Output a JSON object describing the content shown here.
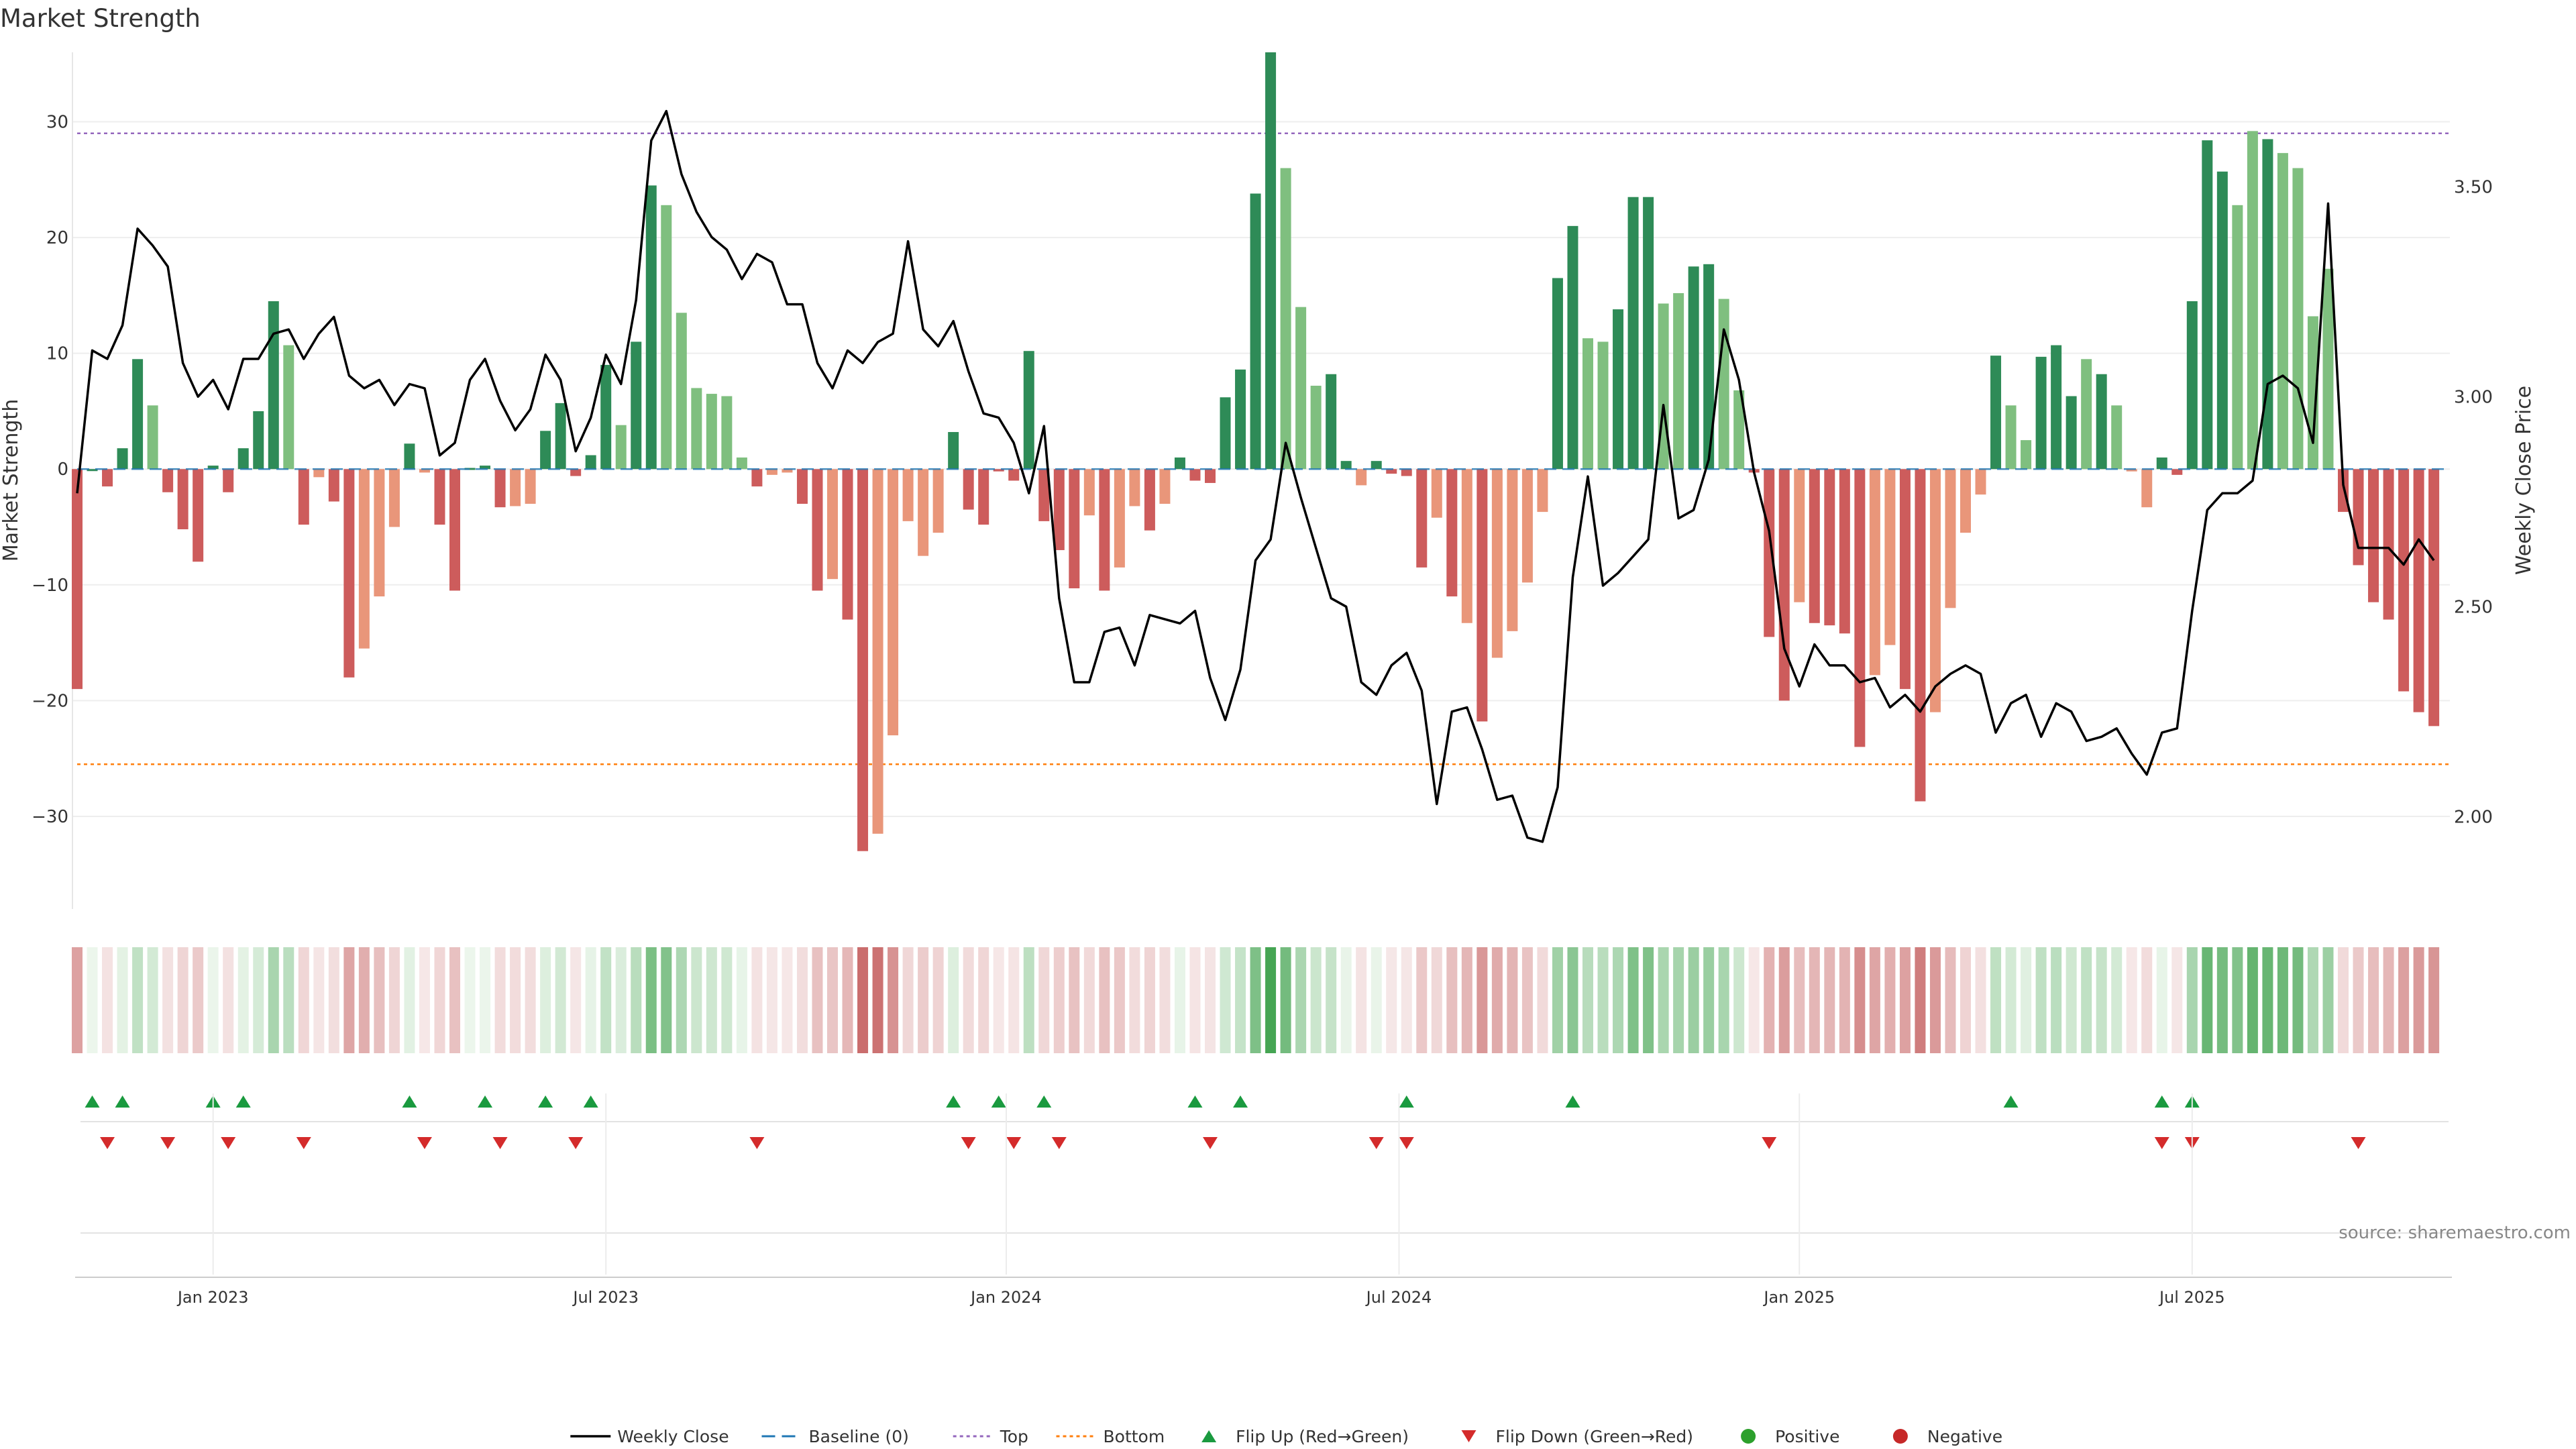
{
  "title": "Market Strength",
  "source_label": "source: sharemaestro.com",
  "colors": {
    "pos_dark": "#2e8b57",
    "pos_light": "#7fbf7f",
    "neg_dark": "#cd5c5c",
    "neg_light": "#e9967a",
    "price_line": "#000000",
    "baseline": "#1f77b4",
    "top": "#9467bd",
    "bottom": "#ff7f0e",
    "flip_up": "#1a9a3f",
    "flip_down": "#d42b2b",
    "positive": "#2ca02c",
    "negative": "#c62828"
  },
  "chart_data": {
    "type": "bar",
    "title": "Market Strength",
    "ylabel_left": "Market Strength",
    "ylabel_right": "Weekly Close Price",
    "ylim_left": [
      -38,
      36
    ],
    "ylim_right": [
      1.78,
      3.82
    ],
    "yticks_left": [
      -30,
      -20,
      -10,
      0,
      10,
      20,
      30
    ],
    "yticks_right": [
      2.0,
      2.5,
      3.0,
      3.5
    ],
    "ytick_labels_left": [
      "−30",
      "−20",
      "−10",
      "0",
      "10",
      "20",
      "30"
    ],
    "ytick_labels_right": [
      "2.00",
      "2.50",
      "3.00",
      "3.50"
    ],
    "top_line": 29,
    "bottom_line": -25.5,
    "x_ticks": [
      {
        "label": "Jan 2023",
        "week": 9
      },
      {
        "label": "Jul 2023",
        "week": 35
      },
      {
        "label": "Jan 2024",
        "week": 61.5
      },
      {
        "label": "Jul 2024",
        "week": 87.5
      },
      {
        "label": "Jan 2025",
        "week": 114
      },
      {
        "label": "Jul 2025",
        "week": 140
      }
    ],
    "series": [
      {
        "name": "Market Strength",
        "values": [
          -19,
          0,
          -1.5,
          1.8,
          9.5,
          5.5,
          -2,
          -5.2,
          -8,
          0.3,
          -2,
          1.8,
          5,
          14.5,
          10.7,
          -4.8,
          -0.7,
          -2.8,
          -18,
          -15.5,
          -11,
          -5,
          2.2,
          -0.3,
          -4.8,
          -10.5,
          0.1,
          0.3,
          -3.3,
          -3.2,
          -3,
          3.3,
          5.7,
          -0.6,
          1.2,
          9,
          3.8,
          11,
          24.5,
          22.8,
          13.5,
          7,
          6.5,
          6.3,
          1,
          -1.5,
          -0.5,
          -0.3,
          -3,
          -10.5,
          -9.5,
          -13,
          -33,
          -31.5,
          -23,
          -4.5,
          -7.5,
          -5.5,
          3.2,
          -3.5,
          -4.8,
          -0.2,
          -1,
          10.2,
          -4.5,
          -7,
          -10.3,
          -4,
          -10.5,
          -8.5,
          -3.2,
          -5.3,
          -3,
          1,
          -1,
          -1.2,
          6.2,
          8.6,
          23.8,
          36,
          26,
          14,
          7.2,
          8.2,
          0.7,
          -1.4,
          0.7,
          -0.4,
          -0.6,
          -8.5,
          -4.2,
          -11,
          -13.3,
          -21.8,
          -16.3,
          -14,
          -9.8,
          -3.7,
          16.5,
          21,
          11.3,
          11,
          13.8,
          23.5,
          23.5,
          14.3,
          15.2,
          17.5,
          17.7,
          14.7,
          6.8,
          -0.3,
          -14.5,
          -20,
          -11.5,
          -13.3,
          -13.5,
          -14.2,
          -24,
          -17.8,
          -15.2,
          -19,
          -28.7,
          -21,
          -12,
          -5.5,
          -2.2,
          9.8,
          5.5,
          2.5,
          9.7,
          10.7,
          6.3,
          9.5,
          8.2,
          5.5,
          -0.2,
          -3.3,
          1,
          -0.5,
          14.5,
          28.4,
          25.7,
          22.8,
          29.2,
          28.5,
          27.3,
          26,
          13.2,
          17.3,
          -3.7,
          -8.3,
          -11.5,
          -13,
          -19.2,
          -21,
          -22.2
        ],
        "shade": [
          "d",
          "d",
          "d",
          "d",
          "d",
          "l",
          "d",
          "d",
          "d",
          "d",
          "d",
          "d",
          "d",
          "d",
          "l",
          "d",
          "l",
          "d",
          "d",
          "l",
          "l",
          "l",
          "d",
          "l",
          "d",
          "d",
          "d",
          "d",
          "d",
          "l",
          "l",
          "d",
          "d",
          "d",
          "d",
          "d",
          "l",
          "d",
          "d",
          "l",
          "l",
          "l",
          "l",
          "l",
          "l",
          "d",
          "l",
          "l",
          "d",
          "d",
          "l",
          "d",
          "d",
          "l",
          "l",
          "l",
          "l",
          "l",
          "d",
          "d",
          "d",
          "d",
          "d",
          "d",
          "d",
          "d",
          "d",
          "l",
          "d",
          "l",
          "l",
          "d",
          "l",
          "d",
          "d",
          "d",
          "d",
          "d",
          "d",
          "d",
          "l",
          "l",
          "l",
          "d",
          "d",
          "l",
          "d",
          "d",
          "d",
          "d",
          "l",
          "d",
          "l",
          "d",
          "l",
          "l",
          "l",
          "l",
          "d",
          "d",
          "l",
          "l",
          "d",
          "d",
          "d",
          "l",
          "l",
          "d",
          "d",
          "l",
          "l",
          "d",
          "d",
          "d",
          "l",
          "d",
          "d",
          "d",
          "d",
          "l",
          "l",
          "d",
          "d",
          "l",
          "l",
          "l",
          "l",
          "d",
          "l",
          "l",
          "d",
          "d",
          "d",
          "l",
          "d",
          "l",
          "l",
          "l",
          "d",
          "d",
          "d",
          "d",
          "d",
          "l",
          "l",
          "d",
          "l",
          "l",
          "l",
          "l",
          "d",
          "d",
          "d",
          "d",
          "d",
          "d",
          "d",
          "d",
          "d"
        ]
      },
      {
        "name": "Weekly Close",
        "axis": "right",
        "values": [
          2.77,
          3.11,
          3.09,
          3.17,
          3.4,
          3.36,
          3.31,
          3.08,
          3.0,
          3.04,
          2.97,
          3.09,
          3.09,
          3.15,
          3.16,
          3.09,
          3.15,
          3.19,
          3.05,
          3.02,
          3.04,
          2.98,
          3.03,
          3.02,
          2.86,
          2.89,
          3.04,
          3.09,
          2.99,
          2.92,
          2.97,
          3.1,
          3.04,
          2.87,
          2.95,
          3.1,
          3.03,
          3.23,
          3.61,
          3.68,
          3.53,
          3.44,
          3.38,
          3.35,
          3.28,
          3.34,
          3.32,
          3.22,
          3.22,
          3.08,
          3.02,
          3.11,
          3.08,
          3.13,
          3.15,
          3.37,
          3.16,
          3.12,
          3.18,
          3.06,
          2.96,
          2.95,
          2.89,
          2.77,
          2.93,
          2.52,
          2.32,
          2.32,
          2.44,
          2.45,
          2.36,
          2.48,
          2.47,
          2.46,
          2.49,
          2.33,
          2.23,
          2.35,
          2.61,
          2.66,
          2.89,
          2.76,
          2.64,
          2.52,
          2.5,
          2.32,
          2.29,
          2.36,
          2.39,
          2.3,
          2.03,
          2.25,
          2.26,
          2.16,
          2.04,
          2.05,
          1.95,
          1.94,
          2.07,
          2.57,
          2.81,
          2.55,
          2.58,
          2.62,
          2.66,
          2.98,
          2.71,
          2.73,
          2.85,
          3.16,
          3.04,
          2.82,
          2.68,
          2.4,
          2.31,
          2.41,
          2.36,
          2.36,
          2.32,
          2.33,
          2.26,
          2.29,
          2.25,
          2.31,
          2.34,
          2.36,
          2.34,
          2.2,
          2.27,
          2.29,
          2.19,
          2.27,
          2.25,
          2.18,
          2.19,
          2.21,
          2.15,
          2.1,
          2.2,
          2.21,
          2.49,
          2.73,
          2.77,
          2.77,
          2.8,
          3.03,
          3.05,
          3.02,
          2.89,
          3.46,
          2.79,
          2.64,
          2.64,
          2.64,
          2.6,
          2.66,
          2.61
        ]
      }
    ],
    "flip_up_weeks": [
      1,
      3,
      9,
      11,
      22,
      27,
      31,
      34,
      58,
      61,
      64,
      74,
      77,
      88,
      99,
      128,
      138,
      140
    ],
    "flip_down_weeks": [
      2,
      6,
      10,
      15,
      23,
      28,
      33,
      45,
      59,
      62,
      65,
      75,
      86,
      88,
      112,
      138,
      140,
      151
    ],
    "legend": [
      {
        "key": "weekly_close",
        "label": "Weekly Close"
      },
      {
        "key": "baseline",
        "label": "Baseline (0)"
      },
      {
        "key": "top",
        "label": "Top"
      },
      {
        "key": "bottom",
        "label": "Bottom"
      },
      {
        "key": "flip_up",
        "label": "Flip Up (Red→Green)"
      },
      {
        "key": "flip_down",
        "label": "Flip Down (Green→Red)"
      },
      {
        "key": "positive",
        "label": "Positive"
      },
      {
        "key": "negative",
        "label": "Negative"
      }
    ]
  }
}
